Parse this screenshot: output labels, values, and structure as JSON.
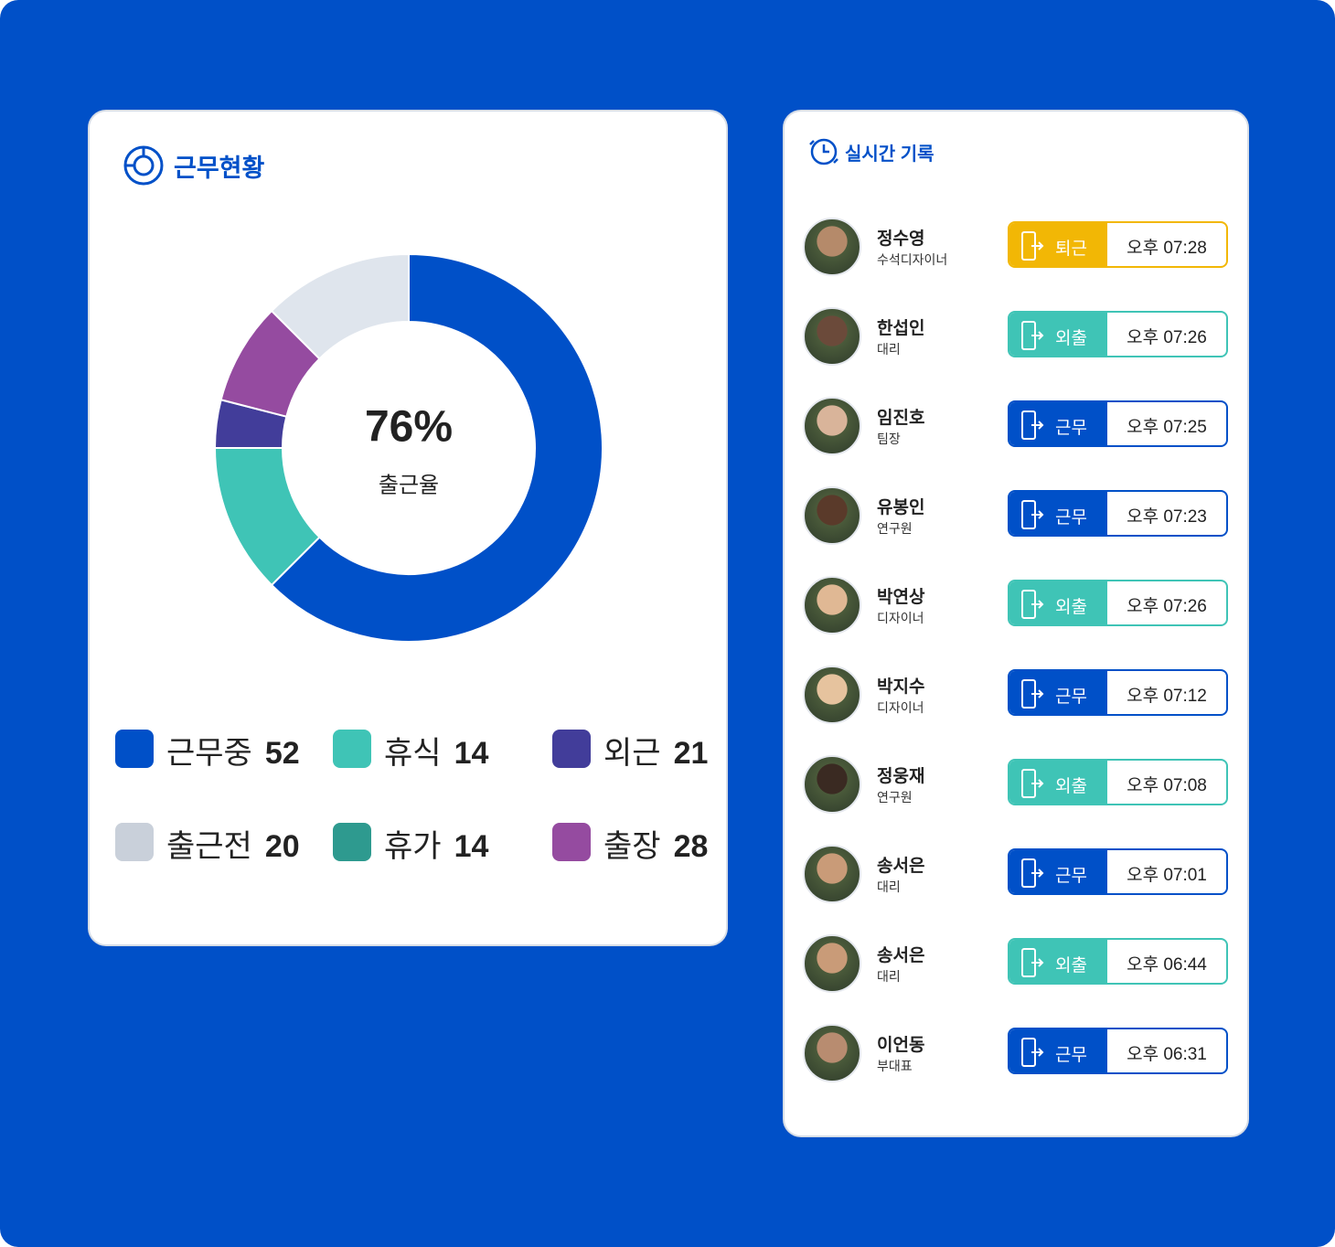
{
  "status_card": {
    "title": "근무현황",
    "legend": [
      {
        "label": "근무중",
        "value": 52,
        "color": "#0050c8"
      },
      {
        "label": "휴식",
        "value": 14,
        "color": "#3fc4b6"
      },
      {
        "label": "외근",
        "value": 21,
        "color": "#423d9a"
      },
      {
        "label": "출근전",
        "value": 20,
        "color": "#c9d0da"
      },
      {
        "label": "휴가",
        "value": 14,
        "color": "#2e9a8f"
      },
      {
        "label": "출장",
        "value": 28,
        "color": "#954ba0"
      }
    ]
  },
  "chart_data": {
    "type": "pie",
    "center_text": "76%",
    "center_label": "출근율",
    "values": [
      62.5,
      12.5,
      4,
      8.5,
      12.5
    ],
    "colors": [
      "#0050c8",
      "#3fc4b6",
      "#423d9a",
      "#954ba0",
      "#dfe5ed"
    ]
  },
  "records": {
    "title": "실시간 기록",
    "rows": [
      {
        "name": "정수영",
        "role": "수석디자이너",
        "status": "퇴근",
        "time": "오후 07:28",
        "color": "#f2b705"
      },
      {
        "name": "한섭인",
        "role": "대리",
        "status": "외출",
        "time": "오후 07:26",
        "color": "#3fc4b6"
      },
      {
        "name": "임진호",
        "role": "팀장",
        "status": "근무",
        "time": "오후 07:25",
        "color": "#0050c8"
      },
      {
        "name": "유봉인",
        "role": "연구원",
        "status": "근무",
        "time": "오후 07:23",
        "color": "#0050c8"
      },
      {
        "name": "박연상",
        "role": "디자이너",
        "status": "외출",
        "time": "오후 07:26",
        "color": "#3fc4b6"
      },
      {
        "name": "박지수",
        "role": "디자이너",
        "status": "근무",
        "time": "오후 07:12",
        "color": "#0050c8"
      },
      {
        "name": "정웅재",
        "role": "연구원",
        "status": "외출",
        "time": "오후 07:08",
        "color": "#3fc4b6"
      },
      {
        "name": "송서은",
        "role": "대리",
        "status": "근무",
        "time": "오후 07:01",
        "color": "#0050c8"
      },
      {
        "name": "송서은",
        "role": "대리",
        "status": "외출",
        "time": "오후 06:44",
        "color": "#3fc4b6"
      },
      {
        "name": "이언동",
        "role": "부대표",
        "status": "근무",
        "time": "오후 06:31",
        "color": "#0050c8"
      }
    ]
  }
}
